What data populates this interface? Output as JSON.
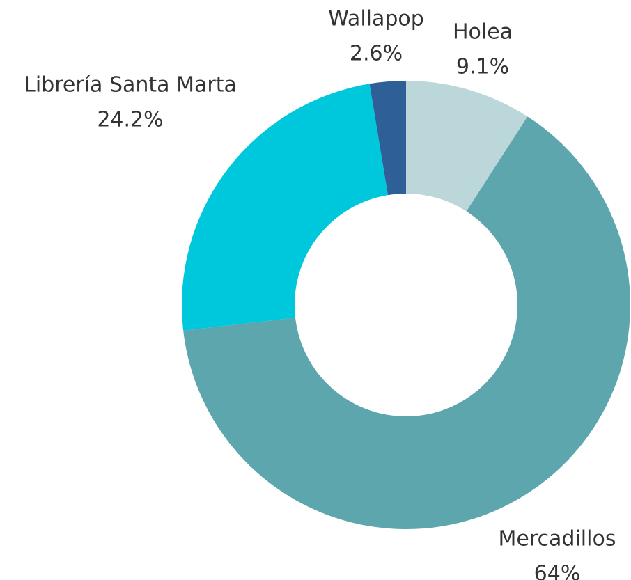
{
  "chart_data": {
    "type": "donut",
    "categories": [
      "Holea",
      "Mercadillos",
      "Librería Santa Marta",
      "Wallapop"
    ],
    "values": [
      9.1,
      64,
      24.2,
      2.6
    ],
    "value_labels": [
      "9.1%",
      "64%",
      "24.2%",
      "2.6%"
    ],
    "colors": [
      "#bcd7da",
      "#5ea6ad",
      "#00c8dc",
      "#2e5f96"
    ]
  }
}
